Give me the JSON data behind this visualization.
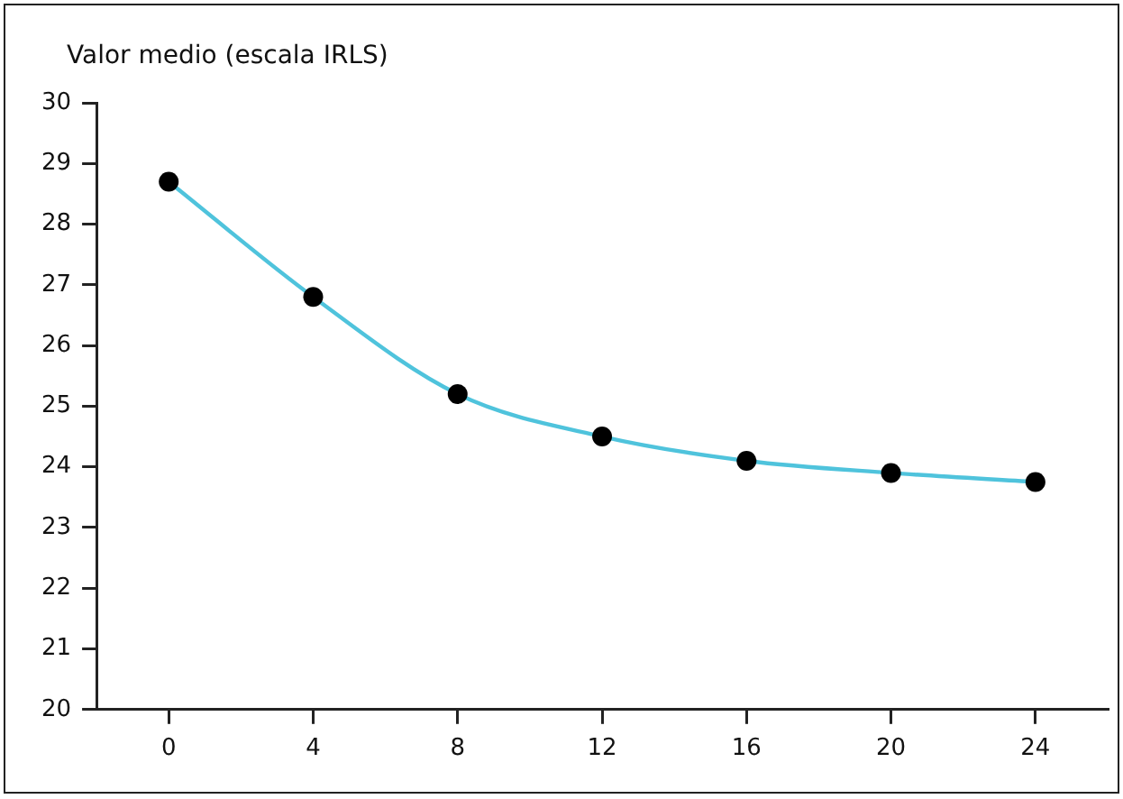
{
  "chart_data": {
    "type": "line",
    "ylabel": "Valor medio (escala IRLS)",
    "x": [
      0,
      4,
      8,
      12,
      16,
      20,
      24
    ],
    "series": [
      {
        "color": "#4fc3dc",
        "values": [
          28.7,
          26.8,
          25.2,
          24.5,
          24.1,
          23.9,
          23.75
        ]
      }
    ],
    "xlim": [
      -2,
      26
    ],
    "xticks": [
      0,
      4,
      8,
      12,
      16,
      20,
      24
    ],
    "ylim": [
      20,
      30
    ],
    "yticks": [
      20,
      21,
      22,
      23,
      24,
      25,
      26,
      27,
      28,
      29,
      30
    ],
    "grid": false,
    "legend": false,
    "marker": "circle",
    "line_style": "solid"
  }
}
